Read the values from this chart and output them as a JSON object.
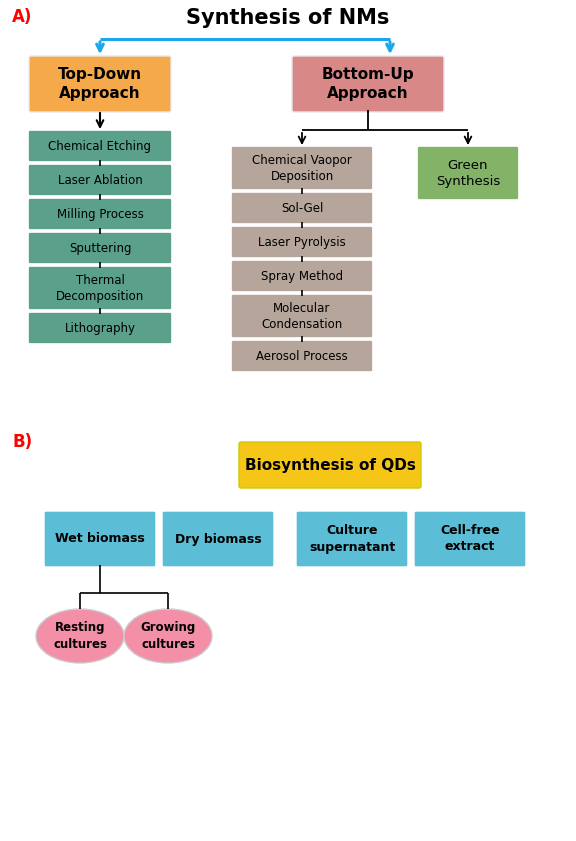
{
  "title_A": "Synthesis of NMs",
  "label_A": "A)",
  "label_B": "B)",
  "top_down_label": "Top-Down\nApproach",
  "bottom_up_label": "Bottom-Up\nApproach",
  "top_down_color": "#F5A94A",
  "bottom_up_color": "#D98888",
  "top_down_items": [
    "Chemical Etching",
    "Laser Ablation",
    "Milling Process",
    "Sputtering",
    "Thermal\nDecomposition",
    "Lithography"
  ],
  "top_down_item_color": "#5BA08A",
  "bottom_up_center_items": [
    "Chemical Vaopor\nDeposition",
    "Sol-Gel",
    "Laser Pyrolysis",
    "Spray Method",
    "Molecular\nCondensation",
    "Aerosol Process"
  ],
  "bottom_up_center_color": "#B5A59A",
  "green_synthesis_label": "Green\nSynthesis",
  "green_synthesis_color": "#82B366",
  "biosynthesis_label": "Biosynthesis of QDs",
  "biosynthesis_color": "#F5C518",
  "bio_items": [
    "Wet biomass",
    "Dry biomass",
    "Culture\nsupernatant",
    "Cell-free\nextract"
  ],
  "bio_item_color": "#5BBDD6",
  "resting_label": "Resting\ncultures",
  "growing_label": "Growing\ncultures",
  "ellipse_color": "#F48FA8",
  "arrow_color": "#1AA7EC",
  "background": "#FFFFFF"
}
